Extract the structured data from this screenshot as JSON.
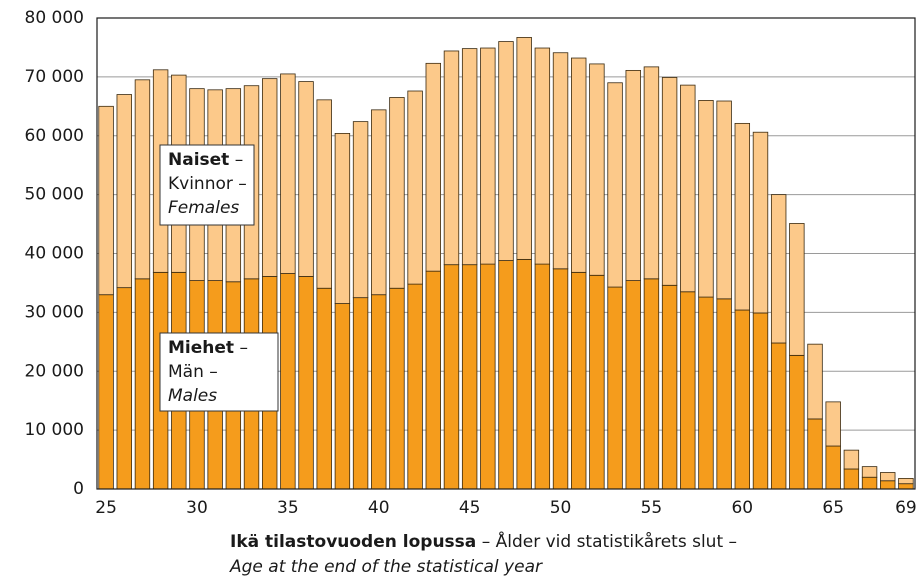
{
  "chart_data": {
    "type": "stacked_bar",
    "categories": [
      "25",
      null,
      null,
      null,
      null,
      "30",
      null,
      null,
      null,
      null,
      "35",
      null,
      null,
      null,
      null,
      "40",
      null,
      null,
      null,
      null,
      "45",
      null,
      null,
      null,
      null,
      "50",
      null,
      null,
      null,
      null,
      "55",
      null,
      null,
      null,
      null,
      "60",
      null,
      null,
      null,
      null,
      "65",
      null,
      null,
      null,
      "69"
    ],
    "series": [
      {
        "name": "Miehet",
        "name_sv": "Män",
        "name_en": "Males",
        "color": "#f59c1c",
        "values": [
          33000,
          34200,
          35700,
          36800,
          36800,
          35400,
          35400,
          35200,
          35700,
          36100,
          36600,
          36100,
          34100,
          31500,
          32500,
          33000,
          34100,
          34800,
          37000,
          38100,
          38100,
          38200,
          38800,
          39000,
          38200,
          37400,
          36800,
          36300,
          34300,
          35400,
          35700,
          34600,
          33500,
          32600,
          32300,
          30400,
          29900,
          24800,
          22700,
          11900,
          7300,
          3400,
          2000,
          1400,
          900
        ]
      },
      {
        "name": "Naiset",
        "name_sv": "Kvinnor",
        "name_en": "Females",
        "color": "#fcc98a",
        "values": [
          32000,
          32800,
          33800,
          34400,
          33500,
          32600,
          32400,
          32800,
          32800,
          33600,
          33900,
          33100,
          32000,
          28900,
          29900,
          31400,
          32400,
          32800,
          35300,
          36300,
          36700,
          36700,
          37200,
          37700,
          36700,
          36700,
          36400,
          35900,
          34700,
          35700,
          36000,
          35300,
          35100,
          33400,
          33600,
          31700,
          30700,
          25200,
          22400,
          12700,
          7500,
          3200,
          1800,
          1400,
          900
        ]
      }
    ],
    "separator": "–",
    "x_label": {
      "fi": "Ikä tilastovuoden lopussa",
      "sv": "Ålder vid statistikårets slut",
      "en": "Age at the end of the statistical year"
    },
    "ylim": [
      0,
      80000
    ],
    "yticks": [
      {
        "value": 0,
        "label": "0"
      },
      {
        "value": 10000,
        "label": "10 000"
      },
      {
        "value": 20000,
        "label": "20 000"
      },
      {
        "value": 30000,
        "label": "30 000"
      },
      {
        "value": 40000,
        "label": "40 000"
      },
      {
        "value": 50000,
        "label": "50 000"
      },
      {
        "value": 60000,
        "label": "60 000"
      },
      {
        "value": 70000,
        "label": "70 000"
      },
      {
        "value": 80000,
        "label": "80 000"
      }
    ],
    "grid": true
  }
}
